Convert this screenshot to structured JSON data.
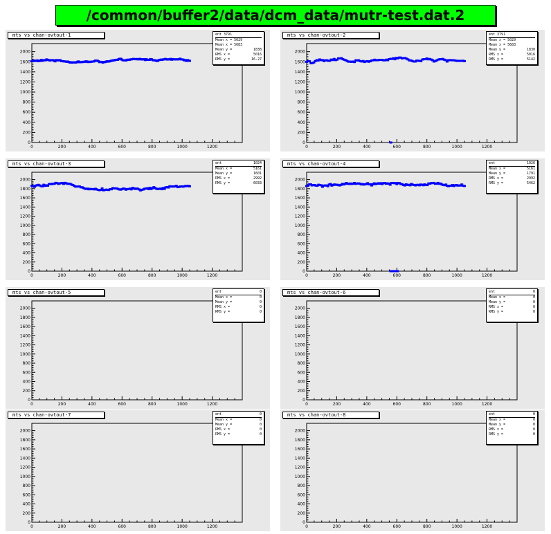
{
  "title": "/common/buffer2/data/dcm_data/mutr-test.dat.2",
  "chart_data": [
    {
      "type": "scatter",
      "title": "mts vs chan-ovtout-1",
      "color": "#0000ff",
      "xlim": [
        0,
        1400
      ],
      "ylim": [
        0,
        2200
      ],
      "xticks": [
        "0",
        "200",
        "400",
        "600",
        "800",
        "1000",
        "1200"
      ],
      "yticks": [
        "0",
        "200",
        "400",
        "600",
        "800",
        "1000",
        "1200",
        "1400",
        "1600",
        "2000"
      ],
      "stats": [
        [
          "ent 3791",
          ""
        ],
        [
          "Mean x = 5029",
          ""
        ],
        [
          "Mean x = 5683",
          ""
        ],
        [
          "Mean y =",
          "1838"
        ],
        [
          "RMS x =",
          "5016"
        ],
        [
          "RMS y =",
          "16.27"
        ]
      ],
      "points_x_range": [
        0,
        1050
      ],
      "level": 1810,
      "spread": 45,
      "n": 150,
      "gaps": []
    },
    {
      "type": "scatter",
      "title": "mts vs chan-ovtout-2",
      "color": "#0000ff",
      "xlim": [
        0,
        1400
      ],
      "ylim": [
        0,
        2200
      ],
      "xticks": [
        "0",
        "200",
        "400",
        "600",
        "800",
        "1000",
        "1200"
      ],
      "yticks": [
        "0",
        "200",
        "400",
        "600",
        "800",
        "1000",
        "1200",
        "1400",
        "1600",
        "2000"
      ],
      "stats": [
        [
          "ent 3791",
          ""
        ],
        [
          "Mean x = 5029",
          ""
        ],
        [
          "Mean x = 5683",
          ""
        ],
        [
          "Mean y =",
          "1830"
        ],
        [
          "RMS x =",
          "5016"
        ],
        [
          "RMS y =",
          "5142"
        ]
      ],
      "points_x_range": [
        0,
        1050
      ],
      "level": 1800,
      "spread": 80,
      "n": 110,
      "gaps": [],
      "outliers": [
        [
          560,
          0
        ]
      ]
    },
    {
      "type": "scatter",
      "title": "mts vs chan-ovtout-3",
      "color": "#0000ff",
      "xlim": [
        0,
        1400
      ],
      "ylim": [
        0,
        2200
      ],
      "xticks": [
        "0",
        "200",
        "400",
        "600",
        "800",
        "1000",
        "1200"
      ],
      "yticks": [
        "0",
        "200",
        "400",
        "600",
        "800",
        "1000",
        "1200",
        "1400",
        "1600",
        "1800",
        "2000"
      ],
      "stats": [
        [
          "ent",
          "1024"
        ],
        [
          "Mean x =",
          "5161"
        ],
        [
          "Mean y =",
          "1601"
        ],
        [
          "RMS x =",
          "2992"
        ],
        [
          "RMS y =",
          "6033"
        ]
      ],
      "points_x_range": [
        0,
        1050
      ],
      "level": 1880,
      "spread": 70,
      "n": 120,
      "gaps": []
    },
    {
      "type": "scatter",
      "title": "mts vs chan-ovtout-4",
      "color": "#0000ff",
      "xlim": [
        0,
        1400
      ],
      "ylim": [
        0,
        2200
      ],
      "xticks": [
        "0",
        "200",
        "400",
        "600",
        "800",
        "1000",
        "1200"
      ],
      "yticks": [
        "0",
        "200",
        "400",
        "600",
        "800",
        "1000",
        "1200",
        "1400",
        "1600",
        "1800",
        "2000"
      ],
      "stats": [
        [
          "ent",
          "1026"
        ],
        [
          "Mean x =",
          "5161"
        ],
        [
          "Mean y =",
          "1791"
        ],
        [
          "RMS x =",
          "2992"
        ],
        [
          "RMS y =",
          "5462"
        ]
      ],
      "points_x_range": [
        0,
        1050
      ],
      "level": 1880,
      "spread": 70,
      "n": 120,
      "gaps": [],
      "outliers": [
        [
          560,
          0
        ],
        [
          575,
          0
        ],
        [
          590,
          0
        ],
        [
          605,
          0
        ]
      ]
    },
    {
      "type": "scatter",
      "title": "mts vs chan-ovtout-5",
      "color": "#0000ff",
      "xlim": [
        0,
        1400
      ],
      "ylim": [
        0,
        2200
      ],
      "xticks": [
        "0",
        "200",
        "400",
        "600",
        "800",
        "1000",
        "1200"
      ],
      "yticks": [
        "0",
        "200",
        "400",
        "600",
        "800",
        "1000",
        "1200",
        "1400",
        "1600",
        "1800",
        "2000"
      ],
      "stats": [
        [
          "ent",
          "0"
        ],
        [
          "Mean x =",
          "0"
        ],
        [
          "Mean y =",
          "0"
        ],
        [
          "RMS x =",
          "0"
        ],
        [
          "RMS y =",
          "0"
        ]
      ],
      "n": 0
    },
    {
      "type": "scatter",
      "title": "mts vs chan-ovtout-6",
      "color": "#0000ff",
      "xlim": [
        0,
        1400
      ],
      "ylim": [
        0,
        2200
      ],
      "xticks": [
        "0",
        "200",
        "400",
        "600",
        "800",
        "1000",
        "1200"
      ],
      "yticks": [
        "0",
        "200",
        "400",
        "600",
        "800",
        "1000",
        "1200",
        "1400",
        "1600",
        "1800",
        "2000"
      ],
      "stats": [
        [
          "ent",
          "0"
        ],
        [
          "Mean x =",
          "0"
        ],
        [
          "Mean y =",
          "0"
        ],
        [
          "RMS x =",
          "0"
        ],
        [
          "RMS y =",
          "0"
        ]
      ],
      "n": 0
    },
    {
      "type": "scatter",
      "title": "mts vs chan-ovtout-7",
      "color": "#0000ff",
      "xlim": [
        0,
        1400
      ],
      "ylim": [
        0,
        2200
      ],
      "xticks": [
        "0",
        "200",
        "400",
        "600",
        "800",
        "1000",
        "1200"
      ],
      "yticks": [
        "0",
        "200",
        "400",
        "600",
        "800",
        "1000",
        "1200",
        "1400",
        "1600",
        "1800",
        "2000"
      ],
      "stats": [
        [
          "ent",
          "0"
        ],
        [
          "Mean x =",
          "0"
        ],
        [
          "Mean y =",
          "0"
        ],
        [
          "RMS x =",
          "0"
        ],
        [
          "RMS y =",
          "0"
        ]
      ],
      "n": 0
    },
    {
      "type": "scatter",
      "title": "mts vs chan-ovtout-8",
      "color": "#0000ff",
      "xlim": [
        0,
        1400
      ],
      "ylim": [
        0,
        2200
      ],
      "xticks": [
        "0",
        "200",
        "400",
        "600",
        "800",
        "1000",
        "1200"
      ],
      "yticks": [
        "0",
        "200",
        "400",
        "600",
        "800",
        "1000",
        "1200",
        "1400",
        "1600",
        "1800",
        "2000"
      ],
      "stats": [
        [
          "ent",
          "0"
        ],
        [
          "Mean x =",
          "0"
        ],
        [
          "Mean y =",
          "0"
        ],
        [
          "RMS x =",
          "0"
        ],
        [
          "RMS y =",
          "0"
        ]
      ],
      "n": 0
    }
  ]
}
